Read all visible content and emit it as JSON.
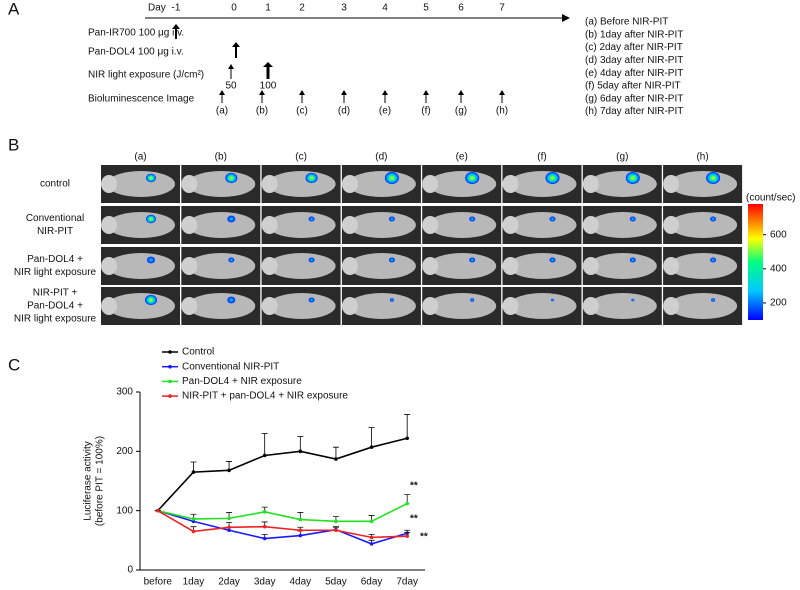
{
  "panel_a": {
    "label": "A",
    "day_title": "Day",
    "days": [
      "-1",
      "0",
      "1",
      "2",
      "3",
      "4",
      "5",
      "6",
      "7"
    ],
    "rows": [
      "Pan-IR700 100 μg i.v.",
      "Pan-DOL4 100 μg i.v.",
      "NIR light exposure (J/cm²)",
      "Bioluminescence Image"
    ],
    "doses": [
      "50",
      "100"
    ],
    "image_marks": [
      "(a)",
      "(b)",
      "(c)",
      "(d)",
      "(e)",
      "(f)",
      "(g)",
      "(h)"
    ],
    "key": [
      "(a)  Before NIR-PIT",
      "(b)  1day after NIR-PIT",
      "(c)  2day after NIR-PIT",
      "(d)  3day after NIR-PIT",
      "(e)  4day after NIR-PIT",
      "(f)  5day after NIR-PIT",
      "(g)  6day after NIR-PIT",
      "(h)  7day after NIR-PIT"
    ]
  },
  "panel_b": {
    "label": "B",
    "columns": [
      "(a)",
      "(b)",
      "(c)",
      "(d)",
      "(e)",
      "(f)",
      "(g)",
      "(h)"
    ],
    "rows": [
      [
        "control"
      ],
      [
        "Conventional",
        "NIR-PIT"
      ],
      [
        "Pan-DOL4 +",
        "NIR light exposure"
      ],
      [
        "NIR-PIT +",
        "Pan-DOL4  +",
        "NIR light exposure"
      ]
    ],
    "colorbar": {
      "label": "(count/sec)",
      "lim": [
        100,
        780
      ],
      "ticks": [
        200,
        400,
        600
      ]
    }
  },
  "panel_c_label": "C",
  "chart_data": {
    "type": "line",
    "y_label": [
      "Luciferase activity",
      "(before PIT = 100%)"
    ],
    "categories": [
      "before",
      "1day",
      "2day",
      "3day",
      "4day",
      "5day",
      "6day",
      "7day"
    ],
    "ylim": [
      0,
      300
    ],
    "yticks": [
      0,
      100,
      200,
      300
    ],
    "series": [
      {
        "name": "Control",
        "color": "#000000",
        "values": [
          100,
          165,
          168,
          193,
          200,
          187,
          207,
          222
        ],
        "errors": [
          0,
          17,
          15,
          37,
          25,
          20,
          33,
          40
        ]
      },
      {
        "name": "Conventional NIR-PIT",
        "color": "#1a1aff",
        "values": [
          100,
          82,
          67,
          53,
          58,
          68,
          44,
          62
        ],
        "errors": [
          0,
          5,
          5,
          7,
          8,
          4,
          6,
          5
        ]
      },
      {
        "name": "Pan-DOL4 + NIR exposure",
        "color": "#22e022",
        "values": [
          100,
          86,
          87,
          98,
          85,
          82,
          82,
          112
        ],
        "errors": [
          0,
          8,
          10,
          8,
          12,
          8,
          10,
          15
        ]
      },
      {
        "name": "NIR-PIT + pan-DOL4 + NIR exposure",
        "color": "#ee2222",
        "values": [
          100,
          65,
          72,
          73,
          67,
          67,
          55,
          57
        ],
        "errors": [
          0,
          8,
          8,
          8,
          5,
          6,
          5,
          6
        ]
      }
    ],
    "annotations": [
      "**",
      "**",
      "**"
    ]
  }
}
